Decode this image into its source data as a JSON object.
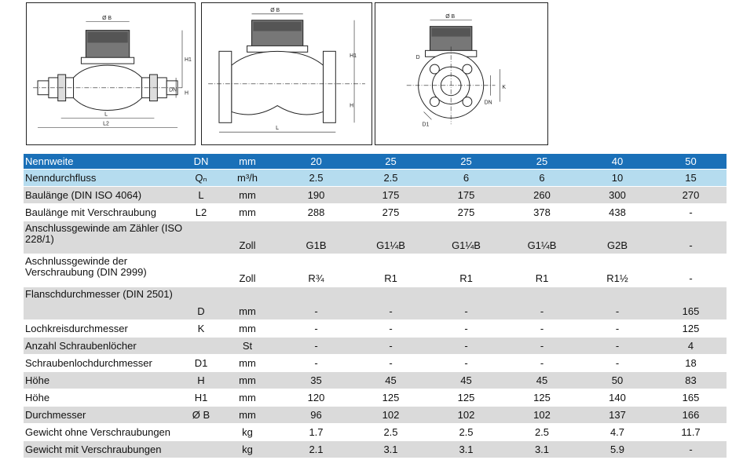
{
  "drawings": {
    "left": {
      "labels": [
        "Ø B",
        "H1",
        "DN",
        "H",
        "L",
        "L2"
      ]
    },
    "middle": {
      "labels": [
        "Ø B",
        "H1",
        "H",
        "L"
      ]
    },
    "right": {
      "labels": [
        "Ø B",
        "D",
        "K",
        "DN",
        "D1"
      ]
    }
  },
  "table": {
    "header": {
      "label": "Nennweite",
      "symbol": "DN",
      "unit": "mm",
      "values": [
        "20",
        "25",
        "25",
        "25",
        "40",
        "50"
      ]
    },
    "rows": [
      {
        "label": "Nenndurchfluss",
        "symbol": "Qₙ",
        "unit": "m³/h",
        "values": [
          "2.5",
          "2.5",
          "6",
          "6",
          "10",
          "15"
        ]
      },
      {
        "label": "Baulänge (DIN ISO 4064)",
        "symbol": "L",
        "unit": "mm",
        "values": [
          "190",
          "175",
          "175",
          "260",
          "300",
          "270"
        ]
      },
      {
        "label": "Baulänge mit Verschraubung",
        "symbol": "L2",
        "unit": "mm",
        "values": [
          "288",
          "275",
          "275",
          "378",
          "438",
          "-"
        ]
      },
      {
        "label": "Anschlussgewinde am Zähler (ISO 228/1)",
        "symbol": "",
        "unit": "Zoll",
        "values": [
          "G1B",
          "G1¼B",
          "G1¼B",
          "G1¼B",
          "G2B",
          "-"
        ]
      },
      {
        "label": "Aschnlussgewinde der Verschraubung (DIN 2999)",
        "symbol": "",
        "unit": "Zoll",
        "values": [
          "R¾",
          "R1",
          "R1",
          "R1",
          "R1½",
          "-"
        ]
      },
      {
        "label": "Flanschdurchmesser (DIN 2501)",
        "symbol": "D",
        "unit": "mm",
        "values": [
          "-",
          "-",
          "-",
          "-",
          "-",
          "165"
        ]
      },
      {
        "label": "Lochkreisdurchmesser",
        "symbol": "K",
        "unit": "mm",
        "values": [
          "-",
          "-",
          "-",
          "-",
          "-",
          "125"
        ]
      },
      {
        "label": "Anzahl Schraubenlöcher",
        "symbol": "",
        "unit": "St",
        "values": [
          "-",
          "-",
          "-",
          "-",
          "-",
          "4"
        ]
      },
      {
        "label": "Schraubenlochdurchmesser",
        "symbol": "D1",
        "unit": "mm",
        "values": [
          "-",
          "-",
          "-",
          "-",
          "-",
          "18"
        ]
      },
      {
        "label": "Höhe",
        "symbol": "H",
        "unit": "mm",
        "values": [
          "35",
          "45",
          "45",
          "45",
          "50",
          "83"
        ]
      },
      {
        "label": "Höhe",
        "symbol": "H1",
        "unit": "mm",
        "values": [
          "120",
          "125",
          "125",
          "125",
          "140",
          "165"
        ]
      },
      {
        "label": "Durchmesser",
        "symbol": "Ø B",
        "unit": "mm",
        "values": [
          "96",
          "102",
          "102",
          "102",
          "137",
          "166"
        ]
      },
      {
        "label": "Gewicht ohne Verschraubungen",
        "symbol": "",
        "unit": "kg",
        "values": [
          "1.7",
          "2.5",
          "2.5",
          "2.5",
          "4.7",
          "11.7"
        ]
      },
      {
        "label": "Gewicht mit Verschraubungen",
        "symbol": "",
        "unit": "kg",
        "values": [
          "2.1",
          "3.1",
          "3.1",
          "3.1",
          "5.9",
          "-"
        ]
      }
    ]
  },
  "colors": {
    "header": "#1a70b8",
    "highlight_row": "#b5dcef",
    "gray_row": "#dadada"
  }
}
